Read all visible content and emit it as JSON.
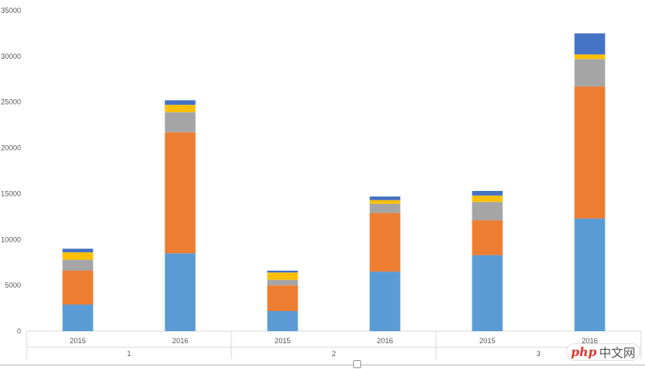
{
  "chart_data": {
    "type": "bar",
    "stacked": true,
    "categories": [
      "2015",
      "2016",
      "2015",
      "2016",
      "2015",
      "2016"
    ],
    "groups": [
      "1",
      "2",
      "3"
    ],
    "ylim": [
      0,
      35000
    ],
    "yticks": [
      0,
      5000,
      10000,
      15000,
      20000,
      25000,
      30000,
      35000
    ],
    "grid": false,
    "series": [
      {
        "color": "#5b9bd5",
        "values": [
          2900,
          8500,
          2200,
          6500,
          8300,
          12300
        ]
      },
      {
        "color": "#ed7d31",
        "values": [
          3700,
          13200,
          2800,
          6400,
          3800,
          14400
        ]
      },
      {
        "color": "#a5a5a5",
        "values": [
          1200,
          2200,
          600,
          1000,
          2000,
          3000
        ]
      },
      {
        "color": "#ffc000",
        "values": [
          800,
          800,
          800,
          400,
          700,
          500
        ]
      },
      {
        "color": "#4472c4",
        "values": [
          400,
          500,
          200,
          400,
          500,
          2300
        ]
      }
    ]
  },
  "watermark": {
    "brand": "php",
    "text": "中文网"
  }
}
